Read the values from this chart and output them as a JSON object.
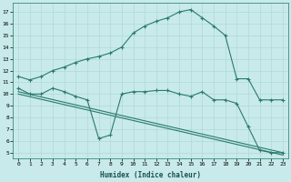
{
  "xlabel": "Humidex (Indice chaleur)",
  "bg_color": "#c8eaea",
  "line_color": "#2a7a6a",
  "grid_color": "#b0d8d8",
  "xlim": [
    -0.5,
    23.5
  ],
  "ylim": [
    4.5,
    17.8
  ],
  "yticks": [
    5,
    6,
    7,
    8,
    9,
    10,
    11,
    12,
    13,
    14,
    15,
    16,
    17
  ],
  "xticks": [
    0,
    1,
    2,
    3,
    4,
    5,
    6,
    7,
    8,
    9,
    10,
    11,
    12,
    13,
    14,
    15,
    16,
    17,
    18,
    19,
    20,
    21,
    22,
    23
  ],
  "line1_x": [
    0,
    1,
    2,
    3,
    4,
    5,
    6,
    7,
    8,
    9,
    10,
    11,
    12,
    13,
    14,
    15,
    16,
    17,
    18,
    19,
    20,
    21,
    22,
    23
  ],
  "line1_y": [
    11.5,
    11.2,
    11.5,
    12.0,
    12.3,
    12.7,
    13.0,
    13.2,
    13.5,
    14.0,
    15.2,
    15.8,
    16.2,
    16.5,
    17.0,
    17.2,
    16.5,
    15.8,
    15.0,
    11.3,
    11.3,
    9.5,
    9.5,
    9.5
  ],
  "line2_x": [
    0,
    1,
    2,
    3,
    4,
    5,
    6,
    7,
    8,
    9,
    10,
    11,
    12,
    13,
    14,
    15,
    16,
    17,
    18,
    19,
    20,
    21,
    22,
    23
  ],
  "line2_y": [
    10.5,
    10.0,
    10.0,
    10.5,
    10.2,
    9.8,
    9.5,
    6.2,
    6.5,
    10.0,
    10.2,
    10.2,
    10.3,
    10.3,
    10.0,
    9.8,
    10.2,
    9.5,
    9.5,
    9.2,
    7.2,
    5.2,
    5.0,
    5.0
  ],
  "line3_x": [
    0,
    23
  ],
  "line3_y": [
    10.2,
    5.0
  ],
  "line4_x": [
    0,
    23
  ],
  "line4_y": [
    10.0,
    4.8
  ]
}
